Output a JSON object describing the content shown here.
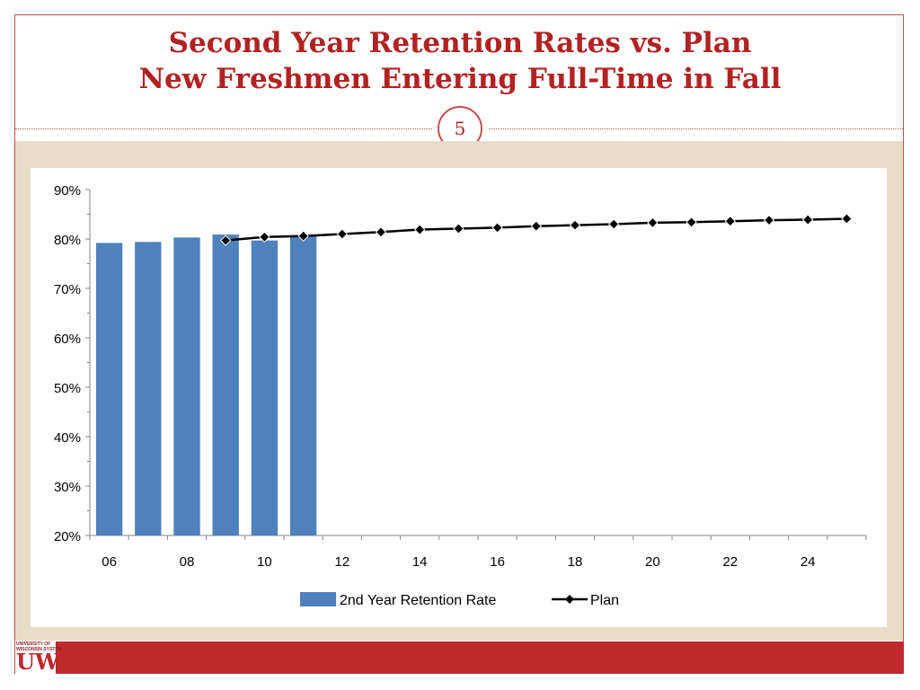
{
  "slide": {
    "title_line1": "Second Year Retention Rates vs. Plan",
    "title_line2": "New Freshmen Entering Full-Time in Fall",
    "page_number": "5",
    "logo_text_line1": "UNIVERSITY OF",
    "logo_text_line2": "WISCONSIN SYSTEM",
    "logo_mark": "UW"
  },
  "colors": {
    "title": "#b22222",
    "bar": "#4f81bd",
    "plan_line": "#000000",
    "band": "#e8dcc6",
    "footer": "#c0292c"
  },
  "chart_data": {
    "type": "bar",
    "x": [
      "06",
      "07",
      "08",
      "09",
      "10",
      "11",
      "12",
      "13",
      "14",
      "15",
      "16",
      "17",
      "18",
      "19",
      "20",
      "21",
      "22",
      "23",
      "24",
      "25"
    ],
    "x_tick_labels": [
      "06",
      "08",
      "10",
      "12",
      "14",
      "16",
      "18",
      "20",
      "22",
      "24"
    ],
    "ylim": [
      20,
      90
    ],
    "y_tick_labels": [
      "20%",
      "30%",
      "40%",
      "50%",
      "60%",
      "70%",
      "80%",
      "90%"
    ],
    "series": [
      {
        "name": "2nd Year Retention Rate",
        "type": "bar",
        "values": [
          79.2,
          79.4,
          80.3,
          80.9,
          79.7,
          80.8,
          null,
          null,
          null,
          null,
          null,
          null,
          null,
          null,
          null,
          null,
          null,
          null,
          null,
          null
        ]
      },
      {
        "name": "Plan",
        "type": "line",
        "values": [
          null,
          null,
          null,
          79.7,
          80.4,
          80.6,
          81.0,
          81.4,
          81.9,
          82.1,
          82.3,
          82.6,
          82.8,
          83.0,
          83.3,
          83.4,
          83.6,
          83.8,
          83.9,
          84.1
        ]
      }
    ],
    "legend": {
      "position": "bottom",
      "items": [
        "2nd Year Retention Rate",
        "Plan"
      ]
    }
  }
}
